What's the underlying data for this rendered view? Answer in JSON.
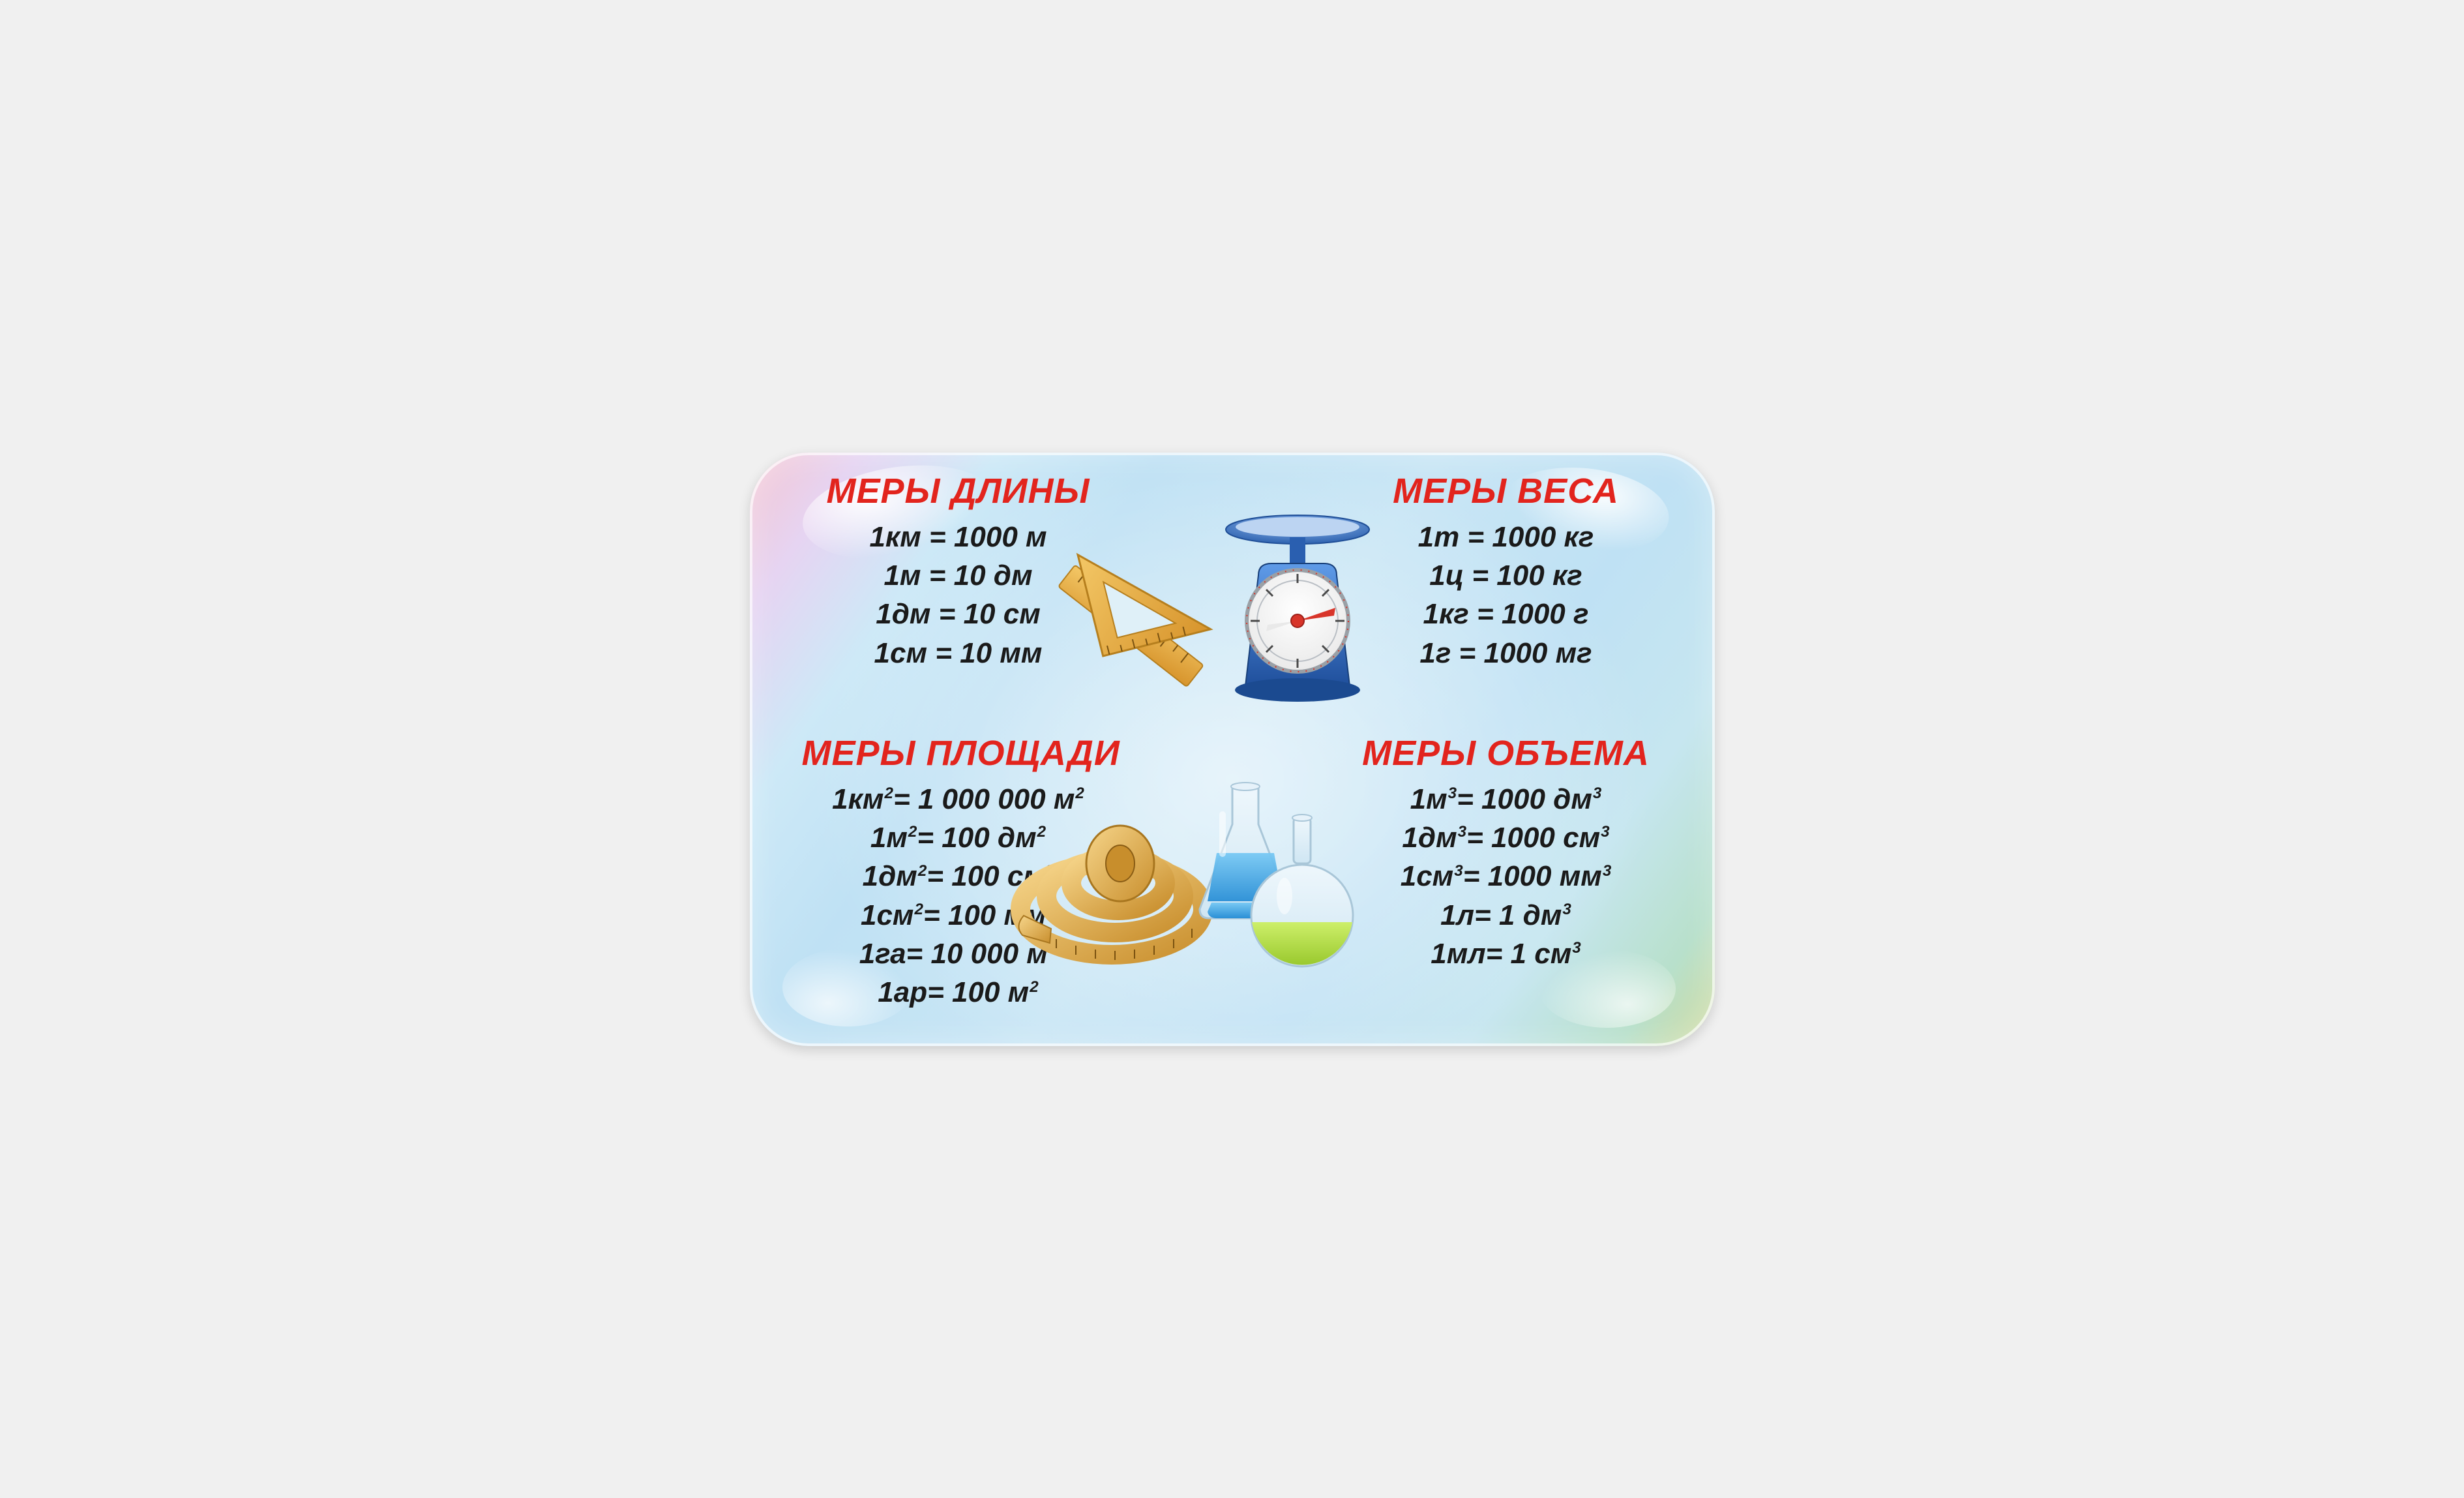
{
  "colors": {
    "heading": "#e2241d",
    "text": "#1a1a1a"
  },
  "sections": {
    "length": {
      "title": "МЕРЫ ДЛИНЫ",
      "items": [
        {
          "lhs": "1км",
          "rhs": "1000 м"
        },
        {
          "lhs": "1м",
          "rhs": "10 дм"
        },
        {
          "lhs": "1дм",
          "rhs": "10 см"
        },
        {
          "lhs": "1см",
          "rhs": "10 мм"
        }
      ]
    },
    "weight": {
      "title": "МЕРЫ ВЕСА",
      "items": [
        {
          "lhs": "1т",
          "rhs": "1000 кг"
        },
        {
          "lhs": "1ц",
          "rhs": "100 кг"
        },
        {
          "lhs": "1кг",
          "rhs": "1000 г"
        },
        {
          "lhs": "1г",
          "rhs": "1000 мг"
        }
      ]
    },
    "area": {
      "title": "МЕРЫ ПЛОЩАДИ",
      "exp": "2",
      "items": [
        {
          "lhs": "1км",
          "lhs_sup": true,
          "rhs_val": "1 000 000 м",
          "rhs_sup": true
        },
        {
          "lhs": "1м",
          "lhs_sup": true,
          "rhs_val": "100 дм",
          "rhs_sup": true
        },
        {
          "lhs": "1дм",
          "lhs_sup": true,
          "rhs_val": "100 см",
          "rhs_sup": true
        },
        {
          "lhs": "1см",
          "lhs_sup": true,
          "rhs_val": "100 мм",
          "rhs_sup": true
        },
        {
          "lhs": "1га",
          "lhs_sup": false,
          "rhs_val": "10 000 м",
          "rhs_sup": true
        },
        {
          "lhs": "1ар",
          "lhs_sup": false,
          "rhs_val": "100 м",
          "rhs_sup": true
        }
      ]
    },
    "volume": {
      "title": "МЕРЫ ОБЪЕМА",
      "exp": "3",
      "items": [
        {
          "lhs": "1м",
          "lhs_sup": true,
          "rhs_val": "1000 дм",
          "rhs_sup": true
        },
        {
          "lhs": "1дм",
          "lhs_sup": true,
          "rhs_val": "1000 см",
          "rhs_sup": true
        },
        {
          "lhs": "1см",
          "lhs_sup": true,
          "rhs_val": "1000 мм",
          "rhs_sup": true
        },
        {
          "lhs": "1л",
          "lhs_sup": false,
          "rhs_val": "1 дм",
          "rhs_sup": true
        },
        {
          "lhs": "1мл",
          "lhs_sup": false,
          "rhs_val": "1 см",
          "rhs_sup": true
        }
      ]
    }
  },
  "icons": {
    "rulers_name": "rulers-icon",
    "scale_name": "scale-icon",
    "tape_name": "tape-measure-icon",
    "flasks_name": "flasks-icon",
    "ruler_fill": "#e7a93a",
    "ruler_edge": "#c07f1b",
    "ruler_tick": "#7a5210",
    "scale_base": "#2a5fb0",
    "scale_base_light": "#4d8ce0",
    "scale_dial_bg": "#ffffff",
    "scale_dial_ring": "#c8c8c8",
    "scale_needle": "#d8352a",
    "scale_pan": "#3f7bd0",
    "tape_fill": "#e6ad46",
    "tape_dark": "#bb842a",
    "tape_light": "#f6d58a",
    "flask_blue": "#58b6f0",
    "flask_blue_dark": "#2a8fd6",
    "flask_green": "#b9e24a",
    "flask_green_dark": "#8fbf2a",
    "glass": "#d9ecf7"
  }
}
